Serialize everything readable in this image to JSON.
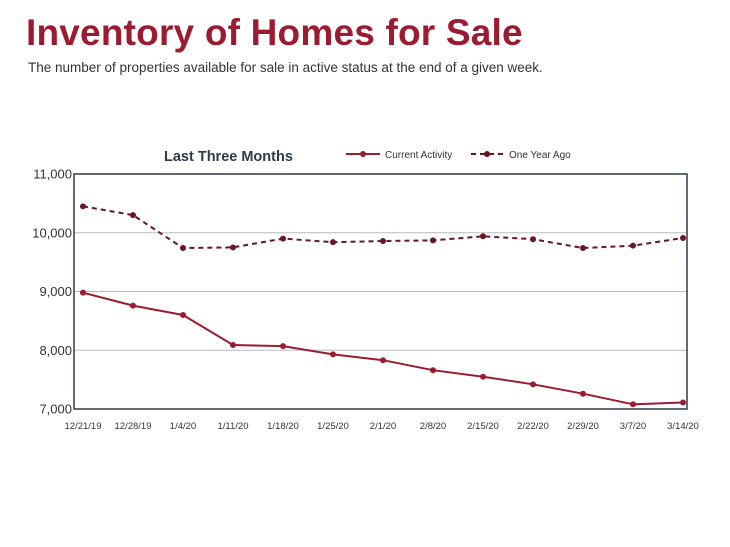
{
  "page": {
    "title": "Inventory of Homes for Sale",
    "subtitle": "The number of properties available for sale in active status at the end of a given week."
  },
  "colors": {
    "title": "#9b1b30",
    "current_series": "#9b1b30",
    "year_ago_series": "#6b1424",
    "frame": "#2d3a4a",
    "grid": "#b9bcc4"
  },
  "chart_data": {
    "type": "line",
    "title": "Last Three Months",
    "xlabel": "",
    "ylabel": "",
    "categories": [
      "12/21/19",
      "12/28/19",
      "1/4/20",
      "1/11/20",
      "1/18/20",
      "1/25/20",
      "2/1/20",
      "2/8/20",
      "2/15/20",
      "2/22/20",
      "2/29/20",
      "3/7/20",
      "3/14/20"
    ],
    "ylim": [
      7000,
      11000
    ],
    "yticks": [
      7000,
      8000,
      9000,
      10000,
      11000
    ],
    "ytick_labels": [
      "7,000",
      "8,000",
      "9,000",
      "10,000",
      "11,000"
    ],
    "grid": "horizontal",
    "legend_position": "top-right",
    "series": [
      {
        "name": "Current Activity",
        "style": "solid",
        "values": [
          8980,
          8760,
          8600,
          8090,
          8070,
          7930,
          7830,
          7660,
          7550,
          7420,
          7260,
          7080,
          7110
        ]
      },
      {
        "name": "One Year Ago",
        "style": "dashed",
        "values": [
          10450,
          10300,
          9740,
          9750,
          9900,
          9840,
          9860,
          9870,
          9940,
          9890,
          9740,
          9780,
          9910
        ]
      }
    ]
  }
}
